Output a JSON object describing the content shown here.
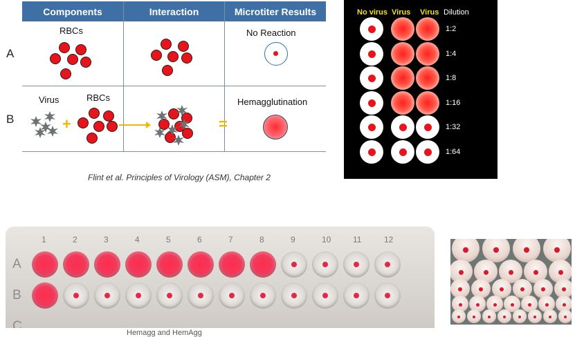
{
  "table": {
    "headers": [
      "Components",
      "Interaction",
      "Microtiter Results"
    ],
    "row_a": {
      "letter": "A",
      "components_label": "RBCs",
      "result_label": "No Reaction"
    },
    "row_b": {
      "letter": "B",
      "virus_label": "Virus",
      "rbc_label": "RBCs",
      "plus": "+",
      "equals": "=",
      "result_label": "Hemagglutination"
    },
    "colors": {
      "header_bg": "#3e6fa5",
      "rbc": "#e8141c",
      "accent": "#f2b705",
      "virus": "#6d7275"
    }
  },
  "citation": "Flint et al. Principles of Virology (ASM), Chapter 2",
  "dilution_panel": {
    "headers": [
      "No virus",
      "Virus",
      "Virus",
      "Dilution"
    ],
    "rows": [
      {
        "dilution": "1:2",
        "wells": [
          "neg",
          "pos",
          "pos"
        ]
      },
      {
        "dilution": "1:4",
        "wells": [
          "neg",
          "pos",
          "pos"
        ]
      },
      {
        "dilution": "1:8",
        "wells": [
          "neg",
          "pos",
          "pos"
        ]
      },
      {
        "dilution": "1:16",
        "wells": [
          "neg",
          "pos",
          "pos"
        ]
      },
      {
        "dilution": "1:32",
        "wells": [
          "neg",
          "neg",
          "neg"
        ]
      },
      {
        "dilution": "1:64",
        "wells": [
          "neg",
          "neg",
          "neg"
        ]
      }
    ]
  },
  "plate_photo": {
    "columns": [
      "1",
      "2",
      "3",
      "4",
      "5",
      "6",
      "7",
      "8",
      "9",
      "10",
      "11",
      "12"
    ],
    "rows": [
      {
        "label": "A",
        "wells": [
          "pos",
          "pos",
          "pos",
          "pos",
          "pos",
          "pos",
          "pos",
          "pos",
          "neg",
          "neg",
          "neg",
          "neg"
        ]
      },
      {
        "label": "B",
        "wells": [
          "pos",
          "neg",
          "neg",
          "neg",
          "neg",
          "neg",
          "neg",
          "neg",
          "neg",
          "neg",
          "neg",
          "neg"
        ]
      },
      {
        "label": "C",
        "wells": []
      }
    ],
    "caption": "Hemagg    and   HemAgg"
  },
  "closeup_photo": {
    "description_icon": "microtiter-closeup-photo"
  }
}
